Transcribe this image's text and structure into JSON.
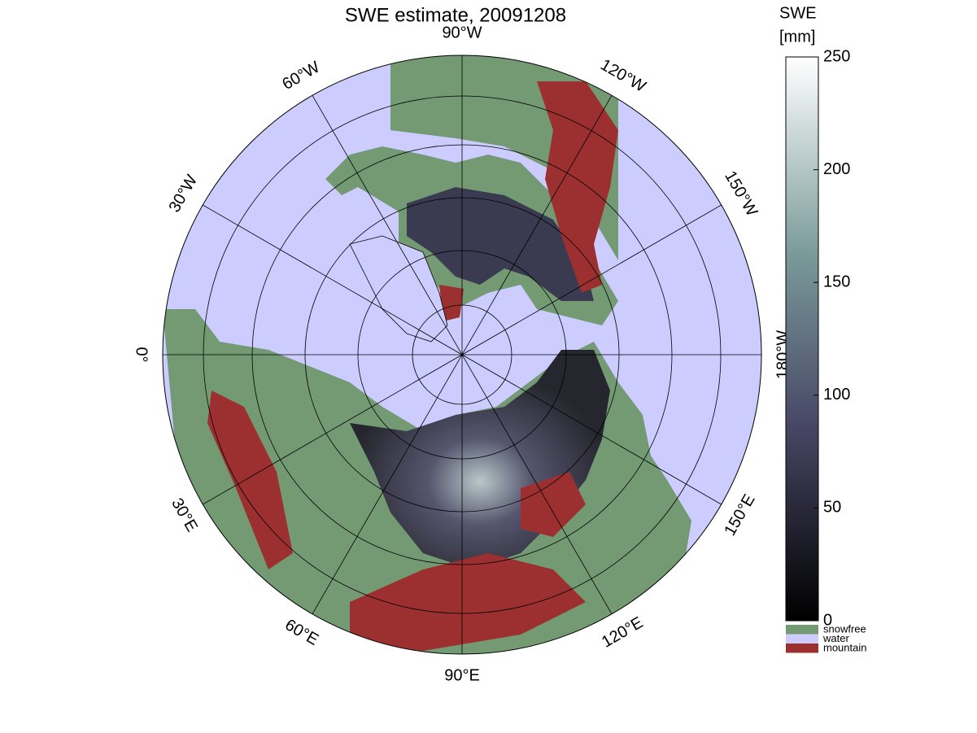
{
  "title": "SWE estimate, 20091208",
  "map": {
    "longitude_labels": [
      "0°",
      "30°E",
      "60°E",
      "90°E",
      "120°E",
      "150°E",
      "180°W",
      "150°W",
      "120°W",
      "90°W",
      "60°W",
      "30°W"
    ]
  },
  "colorbar": {
    "label": [
      "SWE",
      "[mm]"
    ],
    "lim": [
      0,
      250
    ],
    "ticks": [
      0,
      50,
      100,
      150,
      200,
      250
    ]
  },
  "legend": [
    {
      "name": "snowfree",
      "color": "#739a73"
    },
    {
      "name": "water",
      "color": "#ccccff"
    },
    {
      "name": "mountain",
      "color": "#9c3030"
    }
  ]
}
